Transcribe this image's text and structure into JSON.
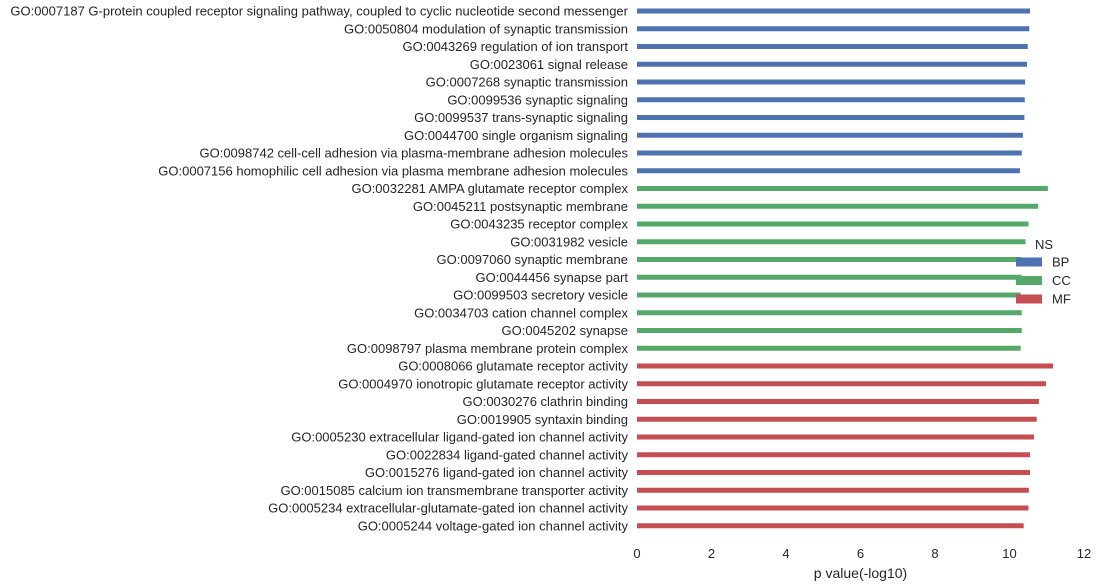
{
  "chart_data": {
    "type": "bar",
    "orientation": "horizontal",
    "title": "",
    "xlabel": "p value(-log10)",
    "ylabel": "",
    "xlim": [
      0,
      12
    ],
    "xticks": [
      "0",
      "2",
      "4",
      "6",
      "8",
      "10",
      "12"
    ],
    "grid": false,
    "legend": {
      "title": "NS",
      "placement": "center-right",
      "entries": [
        {
          "name": "BP",
          "color": "#4c72b0"
        },
        {
          "name": "CC",
          "color": "#55a868"
        },
        {
          "name": "MF",
          "color": "#c44e52"
        }
      ]
    },
    "categories": [
      "GO:0007187 G-protein coupled receptor signaling pathway, coupled to cyclic nucleotide second messenger",
      "GO:0050804 modulation of synaptic transmission",
      "GO:0043269 regulation of ion transport",
      "GO:0023061 signal release",
      "GO:0007268 synaptic transmission",
      "GO:0099536 synaptic signaling",
      "GO:0099537 trans-synaptic signaling",
      "GO:0044700 single organism signaling",
      "GO:0098742 cell-cell adhesion via plasma-membrane adhesion molecules",
      "GO:0007156 homophilic cell adhesion via plasma membrane adhesion molecules",
      "GO:0032281 AMPA glutamate receptor complex",
      "GO:0045211 postsynaptic membrane",
      "GO:0043235 receptor complex",
      "GO:0031982 vesicle",
      "GO:0097060 synaptic membrane",
      "GO:0044456 synapse part",
      "GO:0099503 secretory vesicle",
      "GO:0034703 cation channel complex",
      "GO:0045202 synapse",
      "GO:0098797 plasma membrane protein complex",
      "GO:0008066 glutamate receptor activity",
      "GO:0004970 ionotropic glutamate receptor activity",
      "GO:0030276 clathrin binding",
      "GO:0019905 syntaxin binding",
      "GO:0005230 extracellular ligand-gated ion channel activity",
      "GO:0022834 ligand-gated channel activity",
      "GO:0015276 ligand-gated ion channel activity",
      "GO:0015085 calcium ion transmembrane transporter activity",
      "GO:0005234 extracellular-glutamate-gated ion channel activity",
      "GO:0005244 voltage-gated ion channel activity"
    ],
    "groups": [
      "BP",
      "BP",
      "BP",
      "BP",
      "BP",
      "BP",
      "BP",
      "BP",
      "BP",
      "BP",
      "CC",
      "CC",
      "CC",
      "CC",
      "CC",
      "CC",
      "CC",
      "CC",
      "CC",
      "CC",
      "MF",
      "MF",
      "MF",
      "MF",
      "MF",
      "MF",
      "MF",
      "MF",
      "MF",
      "MF"
    ],
    "values": [
      10.55,
      10.53,
      10.49,
      10.47,
      10.42,
      10.41,
      10.4,
      10.36,
      10.33,
      10.28,
      11.03,
      10.77,
      10.51,
      10.43,
      10.32,
      10.32,
      10.3,
      10.33,
      10.33,
      10.3,
      11.17,
      10.98,
      10.79,
      10.73,
      10.66,
      10.55,
      10.55,
      10.52,
      10.51,
      10.38
    ]
  }
}
